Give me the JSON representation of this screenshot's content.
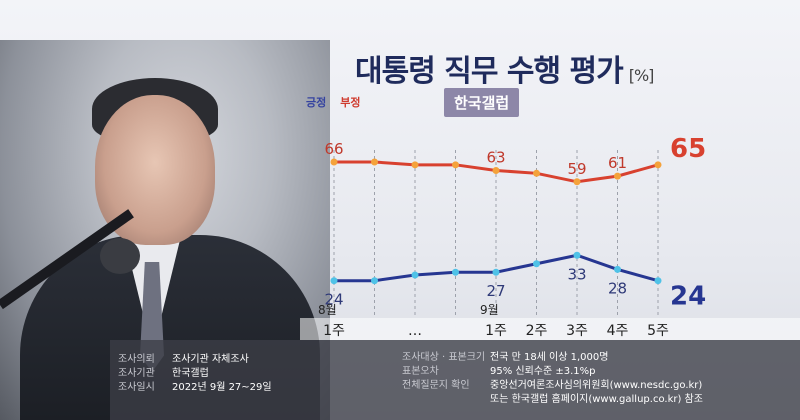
{
  "title": "대통령 직무 수행 평가",
  "unit": "[%]",
  "source_badge": "한국갤럽",
  "legend": {
    "positive": "긍정",
    "negative": "부정"
  },
  "colors": {
    "positive": "#263691",
    "negative": "#d8412f",
    "marker": "#f4a23b",
    "marker_pos": "#4fc2e7",
    "title": "#1f2b5c"
  },
  "chart_data": {
    "type": "line",
    "title": "대통령 직무 수행 평가",
    "x": [
      "8월 1주",
      "",
      "",
      "",
      "9월 1주",
      "9월 2주",
      "9월 3주",
      "9월 4주",
      "9월 5주"
    ],
    "series": [
      {
        "name": "부정",
        "values": [
          66,
          66,
          65,
          65,
          63,
          62,
          59,
          61,
          65
        ],
        "labels": [
          "66",
          "",
          "",
          "",
          "63",
          "",
          "59",
          "61",
          "65"
        ]
      },
      {
        "name": "긍정",
        "values": [
          24,
          24,
          26,
          27,
          27,
          30,
          33,
          28,
          24
        ],
        "labels": [
          "24",
          "",
          "",
          "",
          "27",
          "",
          "33",
          "28",
          "24"
        ]
      }
    ],
    "ylim": [
      10,
      80
    ],
    "grid": true
  },
  "month_labels": [
    {
      "idx": 0,
      "text": "8월"
    },
    {
      "idx": 4,
      "text": "9월"
    }
  ],
  "week_labels": [
    {
      "idx": 0,
      "text": "1주"
    },
    {
      "idx": 2,
      "text": "…"
    },
    {
      "idx": 4,
      "text": "1주"
    },
    {
      "idx": 5,
      "text": "2주"
    },
    {
      "idx": 6,
      "text": "3주"
    },
    {
      "idx": 7,
      "text": "4주"
    },
    {
      "idx": 8,
      "text": "5주"
    }
  ],
  "footer": {
    "left": [
      {
        "label": "조사의뢰",
        "value": "조사기관 자체조사"
      },
      {
        "label": "조사기관",
        "value": "한국갤럽"
      },
      {
        "label": "조사일시",
        "value": "2022년 9월 27~29일"
      }
    ],
    "right": [
      {
        "label": "조사대상 · 표본크기",
        "value": "전국 만 18세 이상 1,000명"
      },
      {
        "label": "표본오차",
        "value": "95% 신뢰수준 ±3.1%p"
      },
      {
        "label": "전체질문지 확인",
        "value": "중앙선거여론조사심의위원회(www.nesdc.go.kr)"
      },
      {
        "label": "",
        "value": "또는 한국갤럽 홈페이지(www.gallup.co.kr) 참조"
      }
    ]
  }
}
